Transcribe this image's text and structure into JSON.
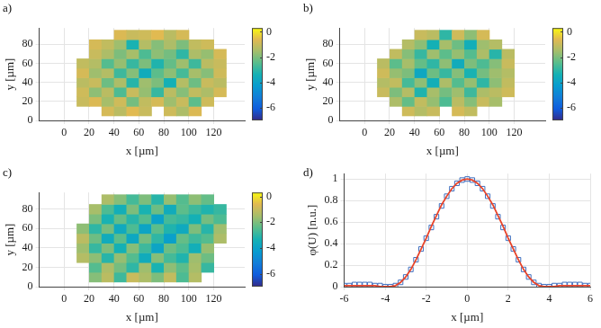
{
  "chart_data": [
    {
      "type": "heatmap",
      "panel_label": "a)",
      "x_label": "x [µm]",
      "y_label": "y [µm]",
      "xlim": [
        -20,
        145
      ],
      "xticks": [
        0,
        20,
        40,
        60,
        80,
        100,
        120
      ],
      "ylim": [
        0,
        97
      ],
      "yticks": [
        0,
        20,
        40,
        60,
        80
      ],
      "grid": true,
      "cbar_lim": [
        -7,
        0.3
      ],
      "cbar_ticks": [
        0,
        -2,
        -4,
        -6
      ],
      "x": [
        15,
        25,
        35,
        45,
        55,
        65,
        75,
        85,
        95,
        105,
        115,
        125
      ],
      "y": [
        10,
        20,
        30,
        40,
        50,
        60,
        70,
        80,
        90
      ],
      "z": [
        [
          null,
          null,
          -0.8,
          -1.2,
          -0.6,
          -1.0,
          null,
          -0.9,
          -1.4,
          -0.7,
          null,
          null
        ],
        [
          -1.0,
          -0.7,
          -1.5,
          -0.9,
          -2.1,
          -1.1,
          -0.8,
          -1.6,
          -1.0,
          -2.4,
          -0.9,
          null
        ],
        [
          -0.9,
          -1.8,
          -1.2,
          -2.6,
          -1.0,
          -1.7,
          -2.9,
          -1.2,
          -1.9,
          -1.1,
          -1.4,
          -0.8
        ],
        [
          -1.2,
          -1.0,
          -2.2,
          -1.4,
          -3.1,
          -1.6,
          -2.0,
          -3.4,
          -1.3,
          -2.2,
          -1.0,
          -1.2
        ],
        [
          -0.8,
          -1.6,
          -1.3,
          -2.8,
          -1.9,
          -3.6,
          -2.4,
          -1.8,
          -2.7,
          -1.5,
          -1.9,
          -0.9
        ],
        [
          -1.1,
          -1.3,
          -2.5,
          -1.7,
          -2.9,
          -2.0,
          -3.2,
          -2.3,
          -1.6,
          -2.8,
          -1.2,
          -1.0
        ],
        [
          null,
          -1.0,
          -1.4,
          -2.0,
          -1.5,
          -2.6,
          -1.8,
          -2.1,
          -3.0,
          -1.4,
          -1.7,
          -0.8
        ],
        [
          null,
          -0.8,
          -1.1,
          -1.6,
          -3.3,
          -1.3,
          -1.9,
          -1.4,
          -2.0,
          -1.1,
          -0.9,
          null
        ],
        [
          null,
          null,
          null,
          -0.7,
          -1.0,
          -0.9,
          -0.6,
          -1.2,
          -0.8,
          null,
          null,
          null
        ]
      ]
    },
    {
      "type": "heatmap",
      "panel_label": "b)",
      "x_label": "x [µm]",
      "y_label": "y [µm]",
      "xlim": [
        -20,
        145
      ],
      "xticks": [
        0,
        20,
        40,
        60,
        80,
        100,
        120
      ],
      "ylim": [
        0,
        97
      ],
      "yticks": [
        0,
        20,
        40,
        60,
        80
      ],
      "grid": true,
      "cbar_lim": [
        -7,
        0.3
      ],
      "cbar_ticks": [
        0,
        -2,
        -4,
        -6
      ],
      "x": [
        15,
        25,
        35,
        45,
        55,
        65,
        75,
        85,
        95,
        105,
        115,
        125
      ],
      "y": [
        10,
        20,
        30,
        40,
        50,
        60,
        70,
        80,
        90
      ],
      "z": [
        [
          null,
          null,
          -0.9,
          -1.3,
          -1.0,
          null,
          -0.8,
          -1.1,
          null,
          null,
          null,
          null
        ],
        [
          null,
          -1.4,
          -2.3,
          -1.1,
          -1.7,
          -2.6,
          -1.2,
          -1.9,
          -1.0,
          -1.5,
          null,
          null
        ],
        [
          -1.0,
          -2.0,
          -1.3,
          -3.2,
          -1.5,
          -2.1,
          -1.6,
          -2.8,
          -1.4,
          -1.2,
          -0.9,
          null
        ],
        [
          -1.3,
          -1.1,
          -2.7,
          -1.8,
          -3.5,
          -1.4,
          -2.5,
          -1.7,
          -3.0,
          -1.8,
          -1.1,
          null
        ],
        [
          -0.9,
          -1.7,
          -2.0,
          -3.8,
          -2.2,
          -2.9,
          -1.9,
          -3.3,
          -2.1,
          -1.6,
          -1.3,
          null
        ],
        [
          -1.2,
          -2.4,
          -1.5,
          -2.3,
          -3.0,
          -1.8,
          -3.6,
          -2.0,
          -2.6,
          -1.9,
          -1.0,
          null
        ],
        [
          null,
          -1.1,
          -1.9,
          -2.9,
          -1.6,
          -2.4,
          -1.7,
          -2.5,
          -1.4,
          -3.1,
          -1.2,
          null
        ],
        [
          null,
          null,
          -1.3,
          -1.8,
          -3.4,
          -1.5,
          -2.2,
          -3.5,
          -1.6,
          -1.3,
          null,
          null
        ],
        [
          null,
          null,
          null,
          -1.0,
          -1.2,
          -3.0,
          -0.9,
          -1.8,
          -0.8,
          null,
          null,
          null
        ]
      ]
    },
    {
      "type": "heatmap",
      "panel_label": "c)",
      "x_label": "x [µm]",
      "y_label": "y [µm]",
      "xlim": [
        -20,
        145
      ],
      "xticks": [
        0,
        20,
        40,
        60,
        80,
        100,
        120
      ],
      "ylim": [
        0,
        97
      ],
      "yticks": [
        0,
        20,
        40,
        60,
        80
      ],
      "grid": true,
      "cbar_lim": [
        -7,
        0.3
      ],
      "cbar_ticks": [
        0,
        -2,
        -4,
        -6
      ],
      "x": [
        15,
        25,
        35,
        45,
        55,
        65,
        75,
        85,
        95,
        105,
        115,
        125
      ],
      "y": [
        10,
        20,
        30,
        40,
        50,
        60,
        70,
        80,
        90
      ],
      "z": [
        [
          null,
          -1.9,
          -1.2,
          -2.8,
          -1.0,
          -1.4,
          -2.0,
          -1.1,
          -2.6,
          -1.3,
          null,
          null
        ],
        [
          null,
          -2.5,
          -1.4,
          -2.1,
          -3.0,
          -1.6,
          -3.3,
          -1.8,
          -2.4,
          -1.5,
          -2.9,
          null
        ],
        [
          -1.3,
          -1.8,
          -3.1,
          -1.7,
          -2.5,
          -3.6,
          -1.9,
          -2.7,
          -3.2,
          -1.6,
          -2.2,
          null
        ],
        [
          -1.6,
          -2.9,
          -2.0,
          -3.4,
          -1.9,
          -2.8,
          -3.9,
          -2.2,
          -2.6,
          -3.5,
          -1.7,
          null
        ],
        [
          -1.2,
          -2.2,
          -3.6,
          -2.4,
          -3.8,
          -2.1,
          -3.0,
          -4.1,
          -2.3,
          -2.8,
          -2.5,
          -1.4
        ],
        [
          -1.8,
          -3.0,
          -2.1,
          -3.7,
          -2.6,
          -3.9,
          -2.4,
          -3.2,
          -3.7,
          -2.0,
          -3.1,
          -1.6
        ],
        [
          null,
          -2.0,
          -3.3,
          -2.3,
          -3.1,
          -2.5,
          -4.0,
          -2.7,
          -2.9,
          -3.4,
          -2.1,
          -2.6
        ],
        [
          null,
          -1.5,
          -2.6,
          -3.5,
          -2.0,
          -3.3,
          -2.2,
          -3.6,
          -2.4,
          -2.8,
          -3.2,
          -2.9
        ],
        [
          null,
          null,
          -1.4,
          -1.9,
          -2.7,
          -2.0,
          -3.1,
          -1.7,
          -2.5,
          -1.8,
          -2.3,
          null
        ]
      ]
    },
    {
      "type": "line",
      "panel_label": "d)",
      "x_label": "x [µm]",
      "y_label": "φ(U) [n.u.]",
      "xlim": [
        -6,
        6
      ],
      "xticks": [
        -6,
        -4,
        -2,
        0,
        2,
        4,
        6
      ],
      "ylim": [
        0,
        1.05
      ],
      "yticks": [
        0,
        0.2,
        0.4,
        0.6,
        0.8,
        1
      ],
      "grid": true,
      "x": [
        -6,
        -5.75,
        -5.5,
        -5.25,
        -5,
        -4.75,
        -4.5,
        -4.25,
        -4,
        -3.75,
        -3.5,
        -3.25,
        -3,
        -2.75,
        -2.5,
        -2.25,
        -2,
        -1.75,
        -1.5,
        -1.25,
        -1,
        -0.75,
        -0.5,
        -0.25,
        0,
        0.25,
        0.5,
        0.75,
        1,
        1.25,
        1.5,
        1.75,
        2,
        2.25,
        2.5,
        2.75,
        3,
        3.25,
        3.5,
        3.75,
        4,
        4.25,
        4.5,
        4.75,
        5,
        5.25,
        5.5,
        5.75,
        6
      ],
      "series": [
        {
          "type": "scatter",
          "color": "#3f6fbf",
          "marker": "square",
          "line_style": "none",
          "values": [
            0.01,
            0.01,
            0.02,
            0.02,
            0.02,
            0.02,
            0.01,
            0.01,
            0,
            0,
            0.01,
            0.04,
            0.09,
            0.16,
            0.25,
            0.35,
            0.45,
            0.55,
            0.65,
            0.75,
            0.84,
            0.91,
            0.96,
            0.99,
            1,
            0.99,
            0.96,
            0.91,
            0.84,
            0.75,
            0.65,
            0.55,
            0.45,
            0.35,
            0.25,
            0.16,
            0.09,
            0.04,
            0.01,
            0,
            0,
            0.01,
            0.01,
            0.02,
            0.02,
            0.02,
            0.02,
            0.01,
            0.01
          ]
        },
        {
          "type": "line",
          "color": "#e8442a",
          "marker": "none",
          "line_style": "solid",
          "values": [
            0.01,
            0.01,
            0.01,
            0.01,
            0.01,
            0.01,
            0.01,
            0,
            0,
            0,
            0.01,
            0.04,
            0.09,
            0.16,
            0.25,
            0.35,
            0.45,
            0.56,
            0.66,
            0.76,
            0.84,
            0.91,
            0.96,
            0.99,
            1,
            0.99,
            0.96,
            0.91,
            0.84,
            0.76,
            0.66,
            0.56,
            0.45,
            0.35,
            0.25,
            0.16,
            0.09,
            0.04,
            0.01,
            0,
            0,
            0,
            0.01,
            0.01,
            0.01,
            0.01,
            0.01,
            0.01,
            0.01
          ]
        }
      ]
    }
  ]
}
